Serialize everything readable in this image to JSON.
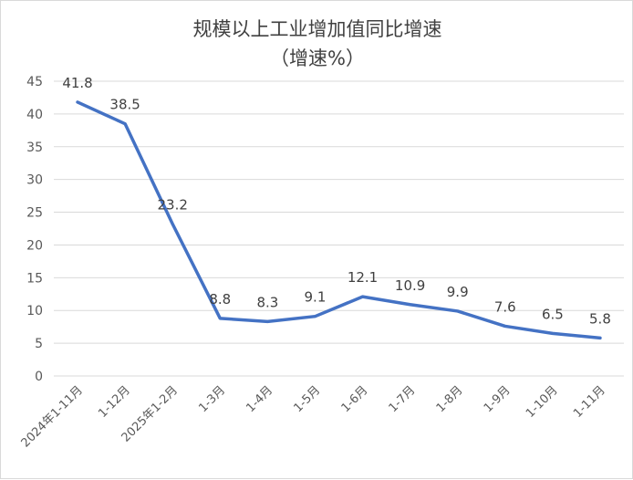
{
  "chart_data": {
    "type": "line",
    "title": "规模以上工业增加值同比增速",
    "subtitle": "（增速%）",
    "xlabel": "",
    "ylabel": "",
    "ylim": [
      0,
      45
    ],
    "yticks": [
      "0",
      "5",
      "10",
      "15",
      "20",
      "25",
      "30",
      "35",
      "40",
      "45"
    ],
    "grid": true,
    "categories": [
      "2024年1-11月",
      "1-12月",
      "2025年1-2月",
      "1-3月",
      "1-4月",
      "1-5月",
      "1-6月",
      "1-7月",
      "1-8月",
      "1-9月",
      "1-10月",
      "1-11月"
    ],
    "series": [
      {
        "name": "增速",
        "color": "#4472c4",
        "values": [
          41.8,
          38.5,
          23.2,
          8.8,
          8.3,
          9.1,
          12.1,
          10.9,
          9.9,
          7.6,
          6.5,
          5.8
        ],
        "labels": [
          "41.8",
          "38.5",
          "23.2",
          "8.8",
          "8.3",
          "9.1",
          "12.1",
          "10.9",
          "9.9",
          "7.6",
          "6.5",
          "5.8"
        ]
      }
    ]
  }
}
